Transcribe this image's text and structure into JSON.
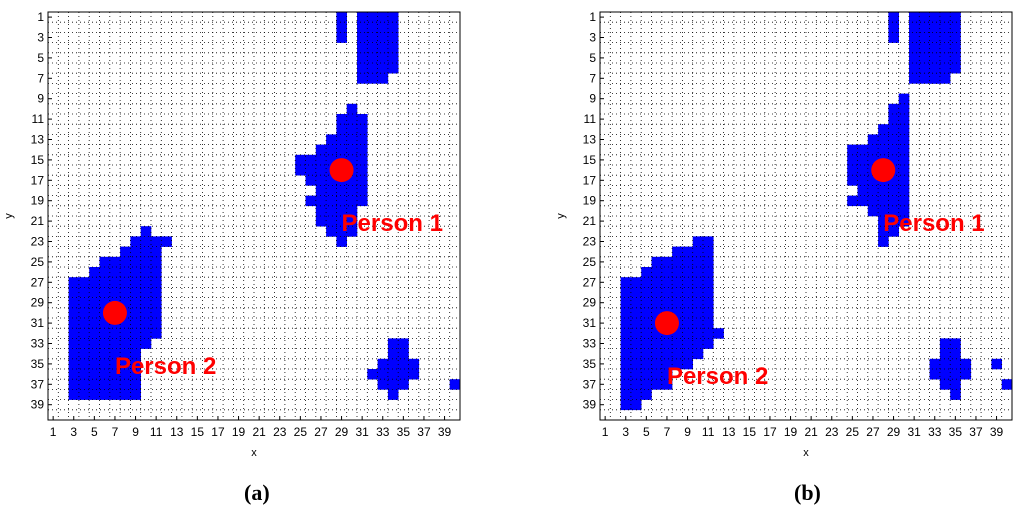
{
  "chart_data": [
    {
      "type": "heatmap",
      "caption": "(a)",
      "xlabel": "x",
      "ylabel": "y",
      "xlim": [
        1,
        40
      ],
      "ylim": [
        1,
        40
      ],
      "xticks": [
        1,
        3,
        5,
        7,
        9,
        11,
        13,
        15,
        17,
        19,
        21,
        23,
        25,
        27,
        29,
        31,
        33,
        35,
        37,
        39
      ],
      "yticks": [
        1,
        3,
        5,
        7,
        9,
        11,
        13,
        15,
        17,
        19,
        21,
        23,
        25,
        27,
        29,
        31,
        33,
        35,
        37,
        39
      ],
      "grid": true,
      "cell_color": "#0000ff",
      "marker_color": "#ff0000",
      "label_color": "#ff0000",
      "occupied_runs": [
        {
          "y": 1,
          "x": [
            [
              29,
              29
            ],
            [
              31,
              34
            ]
          ]
        },
        {
          "y": 2,
          "x": [
            [
              29,
              29
            ],
            [
              31,
              34
            ]
          ]
        },
        {
          "y": 3,
          "x": [
            [
              29,
              29
            ],
            [
              31,
              34
            ]
          ]
        },
        {
          "y": 4,
          "x": [
            [
              31,
              34
            ]
          ]
        },
        {
          "y": 5,
          "x": [
            [
              31,
              34
            ]
          ]
        },
        {
          "y": 6,
          "x": [
            [
              31,
              34
            ]
          ]
        },
        {
          "y": 7,
          "x": [
            [
              31,
              33
            ]
          ]
        },
        {
          "y": 10,
          "x": [
            [
              30,
              30
            ]
          ]
        },
        {
          "y": 11,
          "x": [
            [
              29,
              31
            ]
          ]
        },
        {
          "y": 12,
          "x": [
            [
              29,
              31
            ]
          ]
        },
        {
          "y": 13,
          "x": [
            [
              28,
              31
            ]
          ]
        },
        {
          "y": 14,
          "x": [
            [
              27,
              31
            ]
          ]
        },
        {
          "y": 15,
          "x": [
            [
              25,
              31
            ]
          ]
        },
        {
          "y": 16,
          "x": [
            [
              25,
              31
            ]
          ]
        },
        {
          "y": 17,
          "x": [
            [
              26,
              31
            ]
          ]
        },
        {
          "y": 18,
          "x": [
            [
              27,
              31
            ]
          ]
        },
        {
          "y": 19,
          "x": [
            [
              26,
              31
            ]
          ]
        },
        {
          "y": 20,
          "x": [
            [
              27,
              30
            ]
          ]
        },
        {
          "y": 21,
          "x": [
            [
              27,
              30
            ]
          ]
        },
        {
          "y": 22,
          "x": [
            [
              28,
              30
            ]
          ]
        },
        {
          "y": 23,
          "x": [
            [
              29,
              29
            ]
          ]
        },
        {
          "y": 22,
          "x": [
            [
              10,
              10
            ]
          ]
        },
        {
          "y": 23,
          "x": [
            [
              9,
              12
            ]
          ]
        },
        {
          "y": 24,
          "x": [
            [
              8,
              11
            ]
          ]
        },
        {
          "y": 25,
          "x": [
            [
              6,
              11
            ]
          ]
        },
        {
          "y": 26,
          "x": [
            [
              5,
              11
            ]
          ]
        },
        {
          "y": 27,
          "x": [
            [
              3,
              11
            ]
          ]
        },
        {
          "y": 28,
          "x": [
            [
              3,
              11
            ]
          ]
        },
        {
          "y": 29,
          "x": [
            [
              3,
              11
            ]
          ]
        },
        {
          "y": 30,
          "x": [
            [
              3,
              11
            ]
          ]
        },
        {
          "y": 31,
          "x": [
            [
              3,
              11
            ]
          ]
        },
        {
          "y": 32,
          "x": [
            [
              3,
              11
            ]
          ]
        },
        {
          "y": 33,
          "x": [
            [
              3,
              10
            ]
          ]
        },
        {
          "y": 34,
          "x": [
            [
              3,
              9
            ]
          ]
        },
        {
          "y": 35,
          "x": [
            [
              3,
              9
            ]
          ]
        },
        {
          "y": 36,
          "x": [
            [
              3,
              9
            ]
          ]
        },
        {
          "y": 37,
          "x": [
            [
              3,
              9
            ]
          ]
        },
        {
          "y": 38,
          "x": [
            [
              3,
              9
            ]
          ]
        },
        {
          "y": 33,
          "x": [
            [
              34,
              35
            ]
          ]
        },
        {
          "y": 34,
          "x": [
            [
              34,
              35
            ]
          ]
        },
        {
          "y": 35,
          "x": [
            [
              33,
              36
            ]
          ]
        },
        {
          "y": 36,
          "x": [
            [
              32,
              36
            ]
          ]
        },
        {
          "y": 37,
          "x": [
            [
              33,
              35
            ]
          ]
        },
        {
          "y": 38,
          "x": [
            [
              34,
              34
            ]
          ]
        },
        {
          "y": 37,
          "x": [
            [
              40,
              40
            ]
          ]
        }
      ],
      "persons": [
        {
          "label": "Person 1",
          "x": 29,
          "y": 16
        },
        {
          "label": "Person 2",
          "x": 7,
          "y": 30
        }
      ]
    },
    {
      "type": "heatmap",
      "caption": "(b)",
      "xlabel": "x",
      "ylabel": "y",
      "xlim": [
        1,
        40
      ],
      "ylim": [
        1,
        40
      ],
      "xticks": [
        1,
        3,
        5,
        7,
        9,
        11,
        13,
        15,
        17,
        19,
        21,
        23,
        25,
        27,
        29,
        31,
        33,
        35,
        37,
        39
      ],
      "yticks": [
        1,
        3,
        5,
        7,
        9,
        11,
        13,
        15,
        17,
        19,
        21,
        23,
        25,
        27,
        29,
        31,
        33,
        35,
        37,
        39
      ],
      "grid": true,
      "cell_color": "#0000ff",
      "marker_color": "#ff0000",
      "label_color": "#ff0000",
      "occupied_runs": [
        {
          "y": 1,
          "x": [
            [
              29,
              29
            ],
            [
              31,
              35
            ]
          ]
        },
        {
          "y": 2,
          "x": [
            [
              29,
              29
            ],
            [
              31,
              35
            ]
          ]
        },
        {
          "y": 3,
          "x": [
            [
              29,
              29
            ],
            [
              31,
              35
            ]
          ]
        },
        {
          "y": 4,
          "x": [
            [
              31,
              35
            ]
          ]
        },
        {
          "y": 5,
          "x": [
            [
              31,
              35
            ]
          ]
        },
        {
          "y": 6,
          "x": [
            [
              31,
              35
            ]
          ]
        },
        {
          "y": 7,
          "x": [
            [
              31,
              34
            ]
          ]
        },
        {
          "y": 7,
          "x": [
            [
              33,
              33
            ]
          ]
        },
        {
          "y": 9,
          "x": [
            [
              30,
              30
            ]
          ]
        },
        {
          "y": 10,
          "x": [
            [
              29,
              30
            ]
          ]
        },
        {
          "y": 11,
          "x": [
            [
              29,
              30
            ]
          ]
        },
        {
          "y": 12,
          "x": [
            [
              28,
              30
            ]
          ]
        },
        {
          "y": 13,
          "x": [
            [
              27,
              30
            ]
          ]
        },
        {
          "y": 14,
          "x": [
            [
              25,
              30
            ]
          ]
        },
        {
          "y": 15,
          "x": [
            [
              25,
              30
            ]
          ]
        },
        {
          "y": 16,
          "x": [
            [
              25,
              30
            ]
          ]
        },
        {
          "y": 17,
          "x": [
            [
              25,
              30
            ]
          ]
        },
        {
          "y": 18,
          "x": [
            [
              26,
              30
            ]
          ]
        },
        {
          "y": 19,
          "x": [
            [
              25,
              30
            ]
          ]
        },
        {
          "y": 20,
          "x": [
            [
              27,
              30
            ]
          ]
        },
        {
          "y": 21,
          "x": [
            [
              28,
              30
            ]
          ]
        },
        {
          "y": 22,
          "x": [
            [
              28,
              29
            ]
          ]
        },
        {
          "y": 23,
          "x": [
            [
              28,
              28
            ]
          ]
        },
        {
          "y": 23,
          "x": [
            [
              10,
              11
            ]
          ]
        },
        {
          "y": 24,
          "x": [
            [
              8,
              11
            ]
          ]
        },
        {
          "y": 25,
          "x": [
            [
              6,
              11
            ]
          ]
        },
        {
          "y": 26,
          "x": [
            [
              5,
              11
            ]
          ]
        },
        {
          "y": 27,
          "x": [
            [
              3,
              11
            ]
          ]
        },
        {
          "y": 28,
          "x": [
            [
              3,
              11
            ]
          ]
        },
        {
          "y": 29,
          "x": [
            [
              3,
              11
            ]
          ]
        },
        {
          "y": 30,
          "x": [
            [
              3,
              11
            ]
          ]
        },
        {
          "y": 31,
          "x": [
            [
              3,
              11
            ]
          ]
        },
        {
          "y": 32,
          "x": [
            [
              3,
              12
            ]
          ]
        },
        {
          "y": 33,
          "x": [
            [
              3,
              11
            ]
          ]
        },
        {
          "y": 34,
          "x": [
            [
              3,
              10
            ]
          ]
        },
        {
          "y": 35,
          "x": [
            [
              3,
              9
            ]
          ]
        },
        {
          "y": 36,
          "x": [
            [
              3,
              7
            ]
          ]
        },
        {
          "y": 37,
          "x": [
            [
              3,
              7
            ]
          ]
        },
        {
          "y": 38,
          "x": [
            [
              3,
              5
            ]
          ]
        },
        {
          "y": 39,
          "x": [
            [
              3,
              4
            ]
          ]
        },
        {
          "y": 33,
          "x": [
            [
              34,
              35
            ]
          ]
        },
        {
          "y": 34,
          "x": [
            [
              34,
              35
            ]
          ]
        },
        {
          "y": 35,
          "x": [
            [
              33,
              36
            ]
          ]
        },
        {
          "y": 36,
          "x": [
            [
              33,
              36
            ]
          ]
        },
        {
          "y": 37,
          "x": [
            [
              34,
              35
            ]
          ]
        },
        {
          "y": 38,
          "x": [
            [
              35,
              35
            ]
          ]
        },
        {
          "y": 35,
          "x": [
            [
              39,
              39
            ]
          ]
        },
        {
          "y": 37,
          "x": [
            [
              40,
              40
            ]
          ]
        }
      ],
      "persons": [
        {
          "label": "Person 1",
          "x": 28,
          "y": 16
        },
        {
          "label": "Person 2",
          "x": 7,
          "y": 31
        }
      ]
    }
  ]
}
